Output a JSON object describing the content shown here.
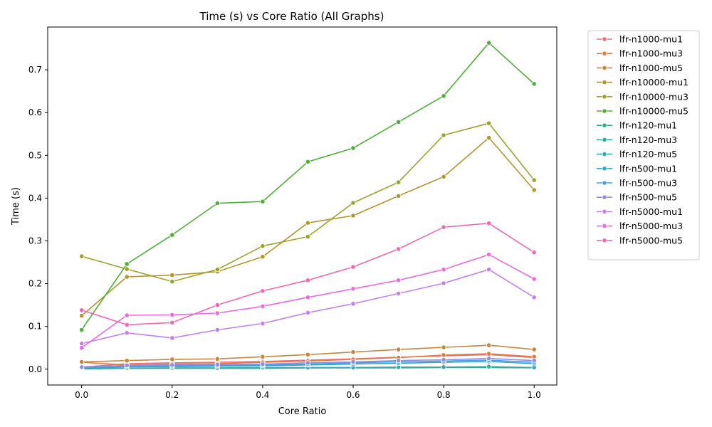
{
  "chart_data": {
    "type": "line",
    "title": "Time (s) vs Core Ratio (All Graphs)",
    "xlabel": "Core Ratio",
    "ylabel": "Time (s)",
    "xlim": [
      -0.075,
      1.05
    ],
    "ylim": [
      -0.037,
      0.8
    ],
    "x_ticks": [
      0.0,
      0.2,
      0.4,
      0.6,
      0.8,
      1.0
    ],
    "x_tick_labels": [
      "0.0",
      "0.2",
      "0.4",
      "0.6",
      "0.8",
      "1.0"
    ],
    "y_ticks": [
      0.0,
      0.1,
      0.2,
      0.3,
      0.4,
      0.5,
      0.6,
      0.7
    ],
    "y_tick_labels": [
      "0.0",
      "0.1",
      "0.2",
      "0.3",
      "0.4",
      "0.5",
      "0.6",
      "0.7"
    ],
    "grid": false,
    "legend_position": "outside-right",
    "marker": "circle",
    "x": [
      0.0,
      0.1,
      0.2,
      0.3,
      0.4,
      0.5,
      0.6,
      0.7,
      0.8,
      0.9,
      1.0
    ],
    "series": [
      {
        "name": "lfr-n1000-mu1",
        "color": "#e8707a",
        "values": [
          0.005,
          0.013,
          0.015,
          0.016,
          0.018,
          0.021,
          0.024,
          0.028,
          0.031,
          0.034,
          0.027
        ]
      },
      {
        "name": "lfr-n1000-mu3",
        "color": "#e17a3e",
        "values": [
          0.016,
          0.01,
          0.012,
          0.013,
          0.016,
          0.019,
          0.023,
          0.027,
          0.033,
          0.036,
          0.029
        ]
      },
      {
        "name": "lfr-n1000-mu5",
        "color": "#c6883c",
        "values": [
          0.017,
          0.02,
          0.023,
          0.024,
          0.029,
          0.034,
          0.04,
          0.046,
          0.051,
          0.056,
          0.046
        ]
      },
      {
        "name": "lfr-n10000-mu1",
        "color": "#b4952d",
        "values": [
          0.125,
          0.216,
          0.22,
          0.228,
          0.263,
          0.342,
          0.359,
          0.405,
          0.45,
          0.541,
          0.419
        ]
      },
      {
        "name": "lfr-n10000-mu3",
        "color": "#9da22a",
        "values": [
          0.264,
          0.234,
          0.205,
          0.233,
          0.288,
          0.31,
          0.389,
          0.437,
          0.547,
          0.575,
          0.442
        ]
      },
      {
        "name": "lfr-n10000-mu5",
        "color": "#4eb035",
        "values": [
          0.092,
          0.246,
          0.314,
          0.388,
          0.392,
          0.485,
          0.517,
          0.578,
          0.639,
          0.763,
          0.667
        ]
      },
      {
        "name": "lfr-n120-mu1",
        "color": "#36ad7b",
        "values": [
          0.001,
          0.002,
          0.002,
          0.002,
          0.002,
          0.003,
          0.003,
          0.003,
          0.004,
          0.004,
          0.003
        ]
      },
      {
        "name": "lfr-n120-mu3",
        "color": "#35ab9b",
        "values": [
          0.001,
          0.002,
          0.003,
          0.003,
          0.003,
          0.003,
          0.004,
          0.004,
          0.005,
          0.005,
          0.004
        ]
      },
      {
        "name": "lfr-n120-mu5",
        "color": "#37a9b0",
        "values": [
          0.002,
          0.003,
          0.003,
          0.003,
          0.004,
          0.004,
          0.004,
          0.005,
          0.005,
          0.006,
          0.004
        ]
      },
      {
        "name": "lfr-n500-mu1",
        "color": "#39a6c4",
        "values": [
          0.003,
          0.006,
          0.006,
          0.007,
          0.008,
          0.01,
          0.012,
          0.014,
          0.016,
          0.018,
          0.013
        ]
      },
      {
        "name": "lfr-n500-mu3",
        "color": "#4d9de0",
        "values": [
          0.004,
          0.008,
          0.008,
          0.009,
          0.01,
          0.012,
          0.015,
          0.017,
          0.019,
          0.021,
          0.016
        ]
      },
      {
        "name": "lfr-n500-mu5",
        "color": "#8f8fe8",
        "values": [
          0.005,
          0.009,
          0.01,
          0.011,
          0.012,
          0.015,
          0.017,
          0.02,
          0.022,
          0.025,
          0.02
        ]
      },
      {
        "name": "lfr-n5000-mu1",
        "color": "#c47ff0",
        "values": [
          0.06,
          0.085,
          0.073,
          0.092,
          0.107,
          0.132,
          0.153,
          0.177,
          0.201,
          0.233,
          0.168
        ]
      },
      {
        "name": "lfr-n5000-mu3",
        "color": "#ee69e0",
        "values": [
          0.05,
          0.126,
          0.127,
          0.131,
          0.147,
          0.168,
          0.188,
          0.208,
          0.233,
          0.268,
          0.211
        ]
      },
      {
        "name": "lfr-n5000-mu5",
        "color": "#f069b3",
        "values": [
          0.138,
          0.104,
          0.109,
          0.15,
          0.183,
          0.208,
          0.239,
          0.281,
          0.332,
          0.341,
          0.273
        ]
      }
    ]
  }
}
